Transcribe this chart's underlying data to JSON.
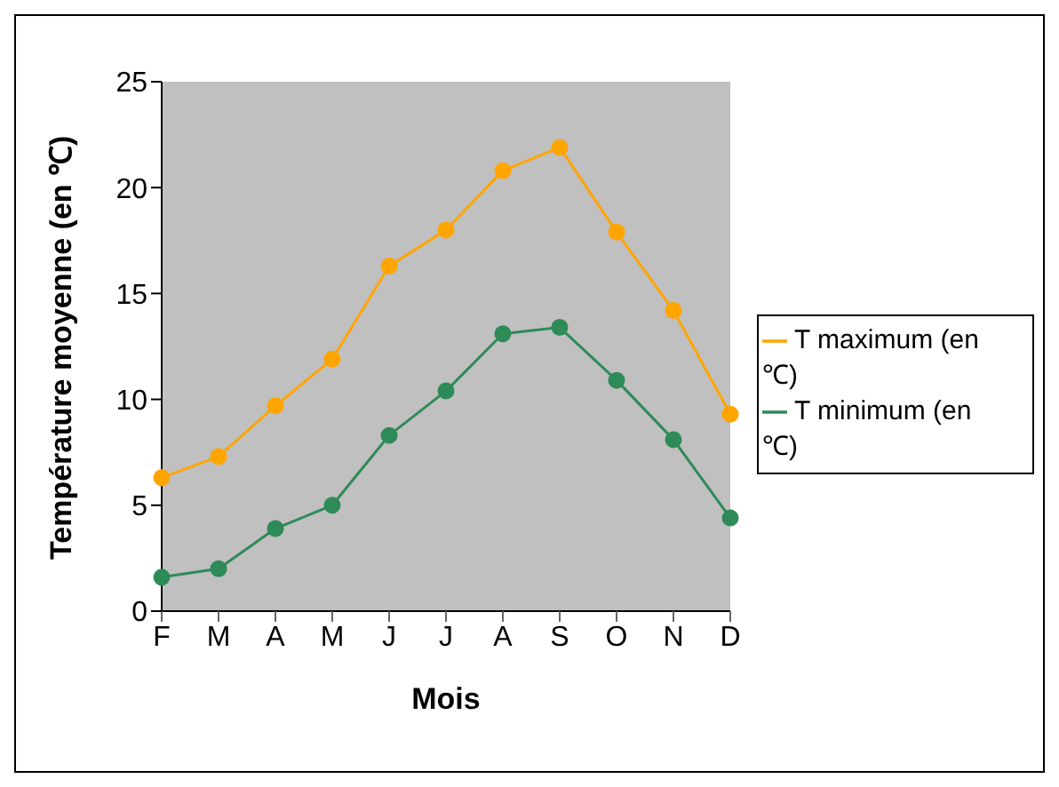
{
  "chart_data": {
    "type": "line",
    "xlabel": "Mois",
    "ylabel": "Température moyenne (en ℃)",
    "categories": [
      "F",
      "M",
      "A",
      "M",
      "J",
      "J",
      "A",
      "S",
      "O",
      "N",
      "D"
    ],
    "series": [
      {
        "name": "T minimum (en ℃)",
        "color": "#2e8b57",
        "values": [
          1.6,
          2.0,
          3.9,
          5.0,
          8.3,
          10.4,
          13.1,
          13.4,
          10.9,
          8.1,
          4.4
        ]
      },
      {
        "name": "T maximum (en ℃)",
        "color": "#ffa500",
        "values": [
          6.3,
          7.3,
          9.7,
          11.9,
          16.3,
          18.0,
          20.8,
          21.9,
          17.9,
          14.2,
          9.3
        ]
      }
    ],
    "ylim": [
      0,
      25
    ],
    "yticks": [
      0,
      5,
      10,
      15,
      20,
      25
    ],
    "grid": false,
    "legend": "right",
    "marker": "circle",
    "line_style": "solid"
  }
}
